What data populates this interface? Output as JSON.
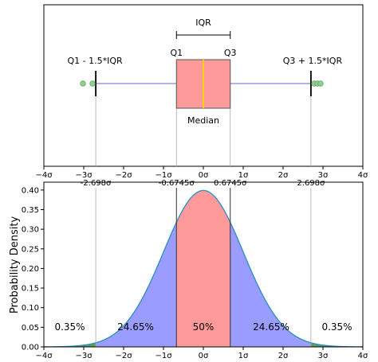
{
  "chart_data": [
    {
      "type": "box",
      "xlim": [
        -4,
        4
      ],
      "x_ticks": [
        -4,
        -3,
        -2,
        -1,
        0,
        1,
        2,
        3,
        4
      ],
      "x_tick_labels": [
        "−4σ",
        "−3σ",
        "−2σ",
        "−1σ",
        "0σ",
        "1σ",
        "2σ",
        "3σ",
        "4σ"
      ],
      "q1": -0.6745,
      "median": 0,
      "q3": 0.6745,
      "whisker_low": -2.698,
      "whisker_high": 2.698,
      "outliers": [
        -3.02,
        -2.78,
        2.78,
        2.86,
        2.94
      ],
      "labels": {
        "iqr": "IQR",
        "q1": "Q1",
        "q3": "Q3",
        "median": "Median",
        "lower_fence": "Q1 - 1.5*IQR",
        "upper_fence": "Q3 + 1.5*IQR"
      },
      "colors": {
        "box_fill": "#ff9a9a",
        "box_edge": "#555555",
        "median": "#ffd700",
        "whisker": "#8888dd",
        "cap": "#000000",
        "outlier": "#8fcf8f"
      }
    },
    {
      "type": "area",
      "title": "",
      "ylabel": "Probability Density",
      "xlim": [
        -4,
        4
      ],
      "ylim": [
        0,
        0.42
      ],
      "x_ticks": [
        -4,
        -3,
        -2,
        -1,
        0,
        1,
        2,
        3,
        4
      ],
      "x_tick_labels": [
        "−4σ",
        "−3σ",
        "−2σ",
        "−1σ",
        "0σ",
        "1σ",
        "2σ",
        "3σ",
        "4σ"
      ],
      "y_ticks": [
        0,
        0.05,
        0.1,
        0.15,
        0.2,
        0.25,
        0.3,
        0.35,
        0.4
      ],
      "y_tick_labels": [
        "0.00",
        "0.05",
        "0.10",
        "0.15",
        "0.20",
        "0.25",
        "0.30",
        "0.35",
        "0.40"
      ],
      "curve": "standard normal pdf",
      "boundaries": [
        {
          "x": -2.698,
          "label": "-2.698σ"
        },
        {
          "x": -0.6745,
          "label": "-0.6745σ"
        },
        {
          "x": 0.6745,
          "label": "0.6745σ"
        },
        {
          "x": 2.698,
          "label": "2.698σ"
        }
      ],
      "regions": [
        {
          "from": -4,
          "to": -2.698,
          "label": "0.35%",
          "color": "#5aa05a"
        },
        {
          "from": -2.698,
          "to": -0.6745,
          "label": "24.65%",
          "color": "#9a9cff"
        },
        {
          "from": -0.6745,
          "to": 0.6745,
          "label": "50%",
          "color": "#ff9a9a"
        },
        {
          "from": 0.6745,
          "to": 2.698,
          "label": "24.65%",
          "color": "#9a9cff"
        },
        {
          "from": 2.698,
          "to": 4,
          "label": "0.35%",
          "color": "#5aa05a"
        }
      ],
      "colors": {
        "curve": "#2a8fbf"
      }
    }
  ]
}
